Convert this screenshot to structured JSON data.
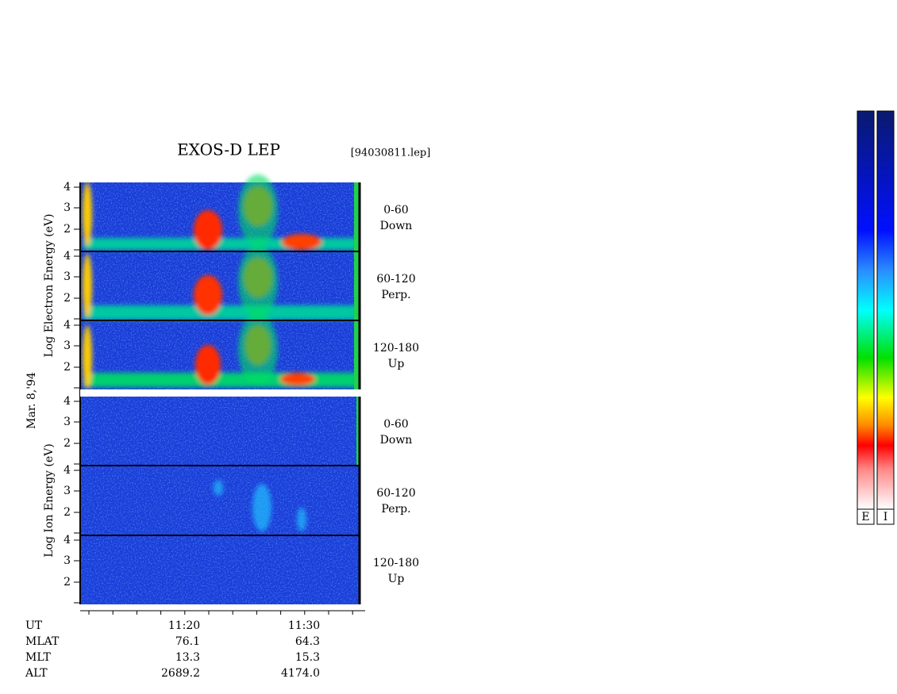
{
  "header": {
    "title": "EXOS-D LEP",
    "file": "[94030811.lep]"
  },
  "date": "Mar. 8,'94",
  "electron": {
    "axis_label": "Log Electron Energy (eV)",
    "panels": [
      {
        "ticks": [
          "4",
          "3",
          "2"
        ],
        "label": [
          "0-60",
          "Down"
        ]
      },
      {
        "ticks": [
          "4",
          "3",
          "2"
        ],
        "label": [
          "60-120",
          "Perp."
        ]
      },
      {
        "ticks": [
          "4",
          "3",
          "2"
        ],
        "label": [
          "120-180",
          "Up"
        ]
      }
    ]
  },
  "ion": {
    "axis_label": "Log Ion Energy (eV)",
    "panels": [
      {
        "ticks": [
          "4",
          "3",
          "2"
        ],
        "label": [
          "0-60",
          "Down"
        ]
      },
      {
        "ticks": [
          "4",
          "3",
          "2"
        ],
        "label": [
          "60-120",
          "Perp."
        ]
      },
      {
        "ticks": [
          "4",
          "3",
          "2"
        ],
        "label": [
          "120-180",
          "Up"
        ]
      }
    ]
  },
  "time_axis": {
    "ticks": [
      "11:20",
      "11:30"
    ]
  },
  "ephemeris": {
    "rows": [
      {
        "name": "UT"
      },
      {
        "name": "MLAT",
        "values": [
          "76.1",
          "64.3"
        ]
      },
      {
        "name": "MLT",
        "values": [
          "13.3",
          "15.3"
        ]
      },
      {
        "name": "ALT",
        "values": [
          "2689.2",
          "4174.0"
        ]
      }
    ]
  },
  "colorbars": [
    "E",
    "I"
  ]
}
